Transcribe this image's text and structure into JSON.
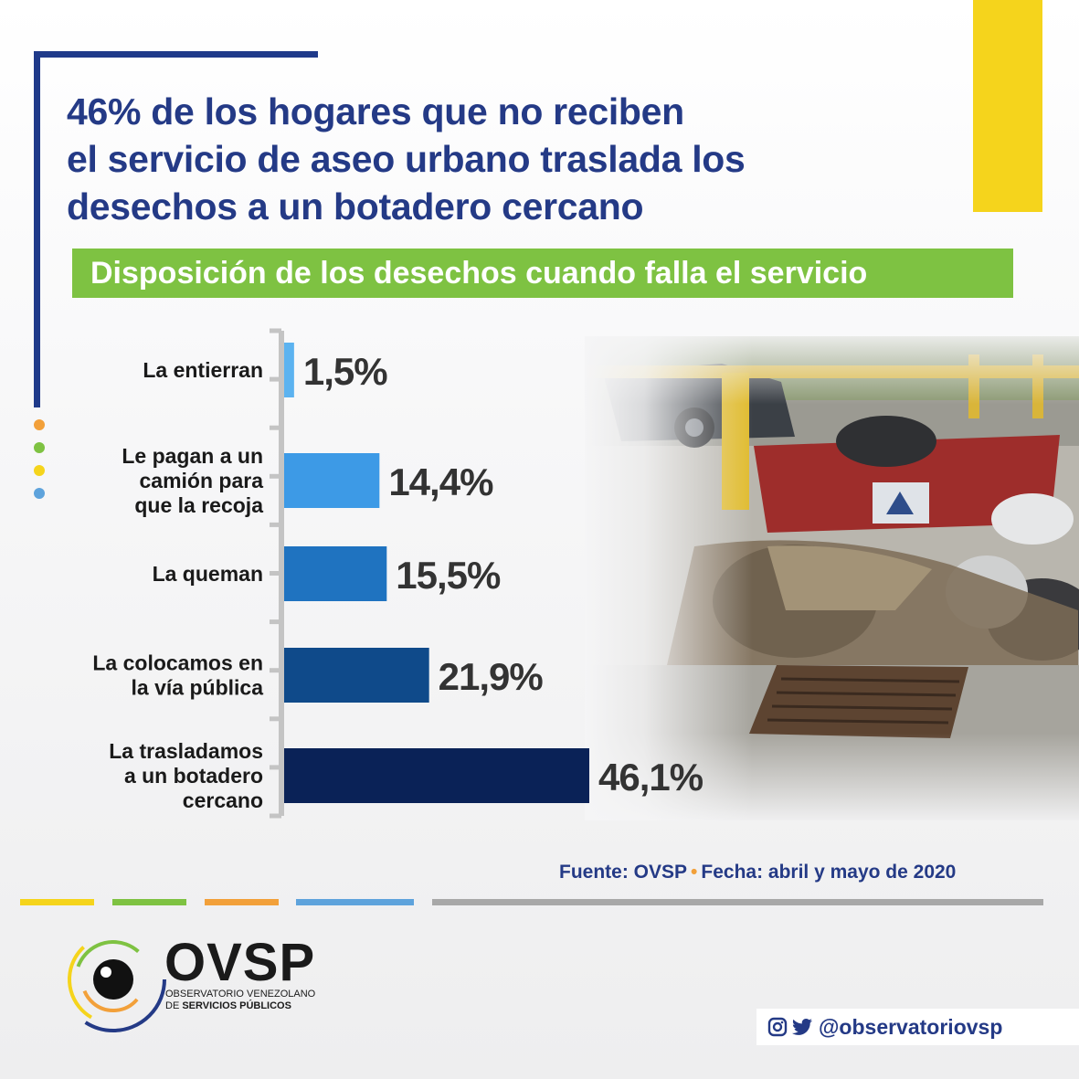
{
  "title": {
    "line1": "46% de los hogares que no reciben",
    "line2": "el servicio de aseo urbano traslada los",
    "line3": "desechos a un botadero cercano"
  },
  "banner": "Disposición de los desechos cuando falla el servicio",
  "chart_data": {
    "type": "bar",
    "orientation": "horizontal",
    "categories": [
      [
        "La entierran"
      ],
      [
        "Le pagan a un",
        "camión para",
        "que la recoja"
      ],
      [
        "La queman"
      ],
      [
        "La colocamos en",
        "la vía pública"
      ],
      [
        "La trasladamos",
        "a un botadero",
        "cercano"
      ]
    ],
    "values": [
      1.5,
      14.4,
      15.5,
      21.9,
      46.1
    ],
    "value_labels": [
      "1,5%",
      "14,4%",
      "15,5%",
      "21,9%",
      "46,1%"
    ],
    "bar_colors": [
      "#5cb3f0",
      "#3d9ae6",
      "#1f73c0",
      "#0f4a8a",
      "#0a2257"
    ],
    "xlim": [
      0,
      50
    ],
    "grid": false
  },
  "source": {
    "fuente": "Fuente: OVSP",
    "fecha": "Fecha: abril y mayo de 2020",
    "separator": "•"
  },
  "brand": {
    "name": "OVSP",
    "sub_line1": "OBSERVATORIO VENEZOLANO",
    "sub_line2_prefix": "DE",
    "sub_line2_bold": "SERVICIOS PÚBLICOS"
  },
  "social": {
    "handle": "@observatoriovsp",
    "icons": [
      "instagram-icon",
      "twitter-icon"
    ]
  },
  "colors": {
    "navy": "#243a86",
    "green": "#7ec242",
    "yellow": "#f5d41c",
    "orange": "#f2a03a",
    "light_blue": "#5ea3dc",
    "gray": "#a8a8a8"
  }
}
